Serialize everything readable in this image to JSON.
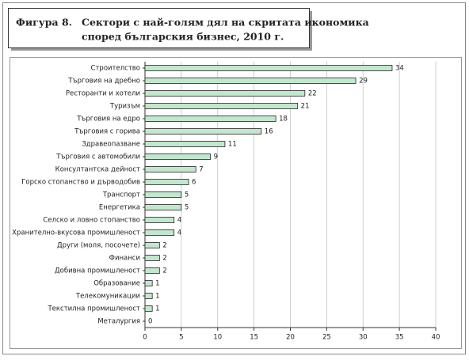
{
  "chart_data": {
    "type": "bar",
    "orientation": "horizontal",
    "figure_label": "Фигура 8.",
    "title": [
      "Сектори с най-голям дял на скритата икономика",
      "според българския бизнес, 2010 г."
    ],
    "categories": [
      "Строителство",
      "Търговия на дребно",
      "Ресторанти и хотели",
      "Туризъм",
      "Търговия на едро",
      "Търговия с горива",
      "Здравеопазване",
      "Търговия с автомобили",
      "Консултантска дейност",
      "Горско стопанство и дърводобив",
      "Транспорт",
      "Енергетика",
      "Селско и ловно стопанство",
      "Хранително-вкусова промишленост",
      "Други (моля, посочете)",
      "Финанси",
      "Добивна промишленост",
      "Образование",
      "Телекомуникации",
      "Текстилна промишленост",
      "Металургия"
    ],
    "values": [
      34,
      29,
      22,
      21,
      18,
      16,
      11,
      9,
      7,
      6,
      5,
      5,
      4,
      4,
      2,
      2,
      2,
      1,
      1,
      1,
      0
    ],
    "color": "#c3e6cf",
    "xlim": [
      0,
      40
    ],
    "xticks": [
      0,
      5,
      10,
      15,
      20,
      25,
      30,
      35,
      40
    ],
    "grid": true
  }
}
